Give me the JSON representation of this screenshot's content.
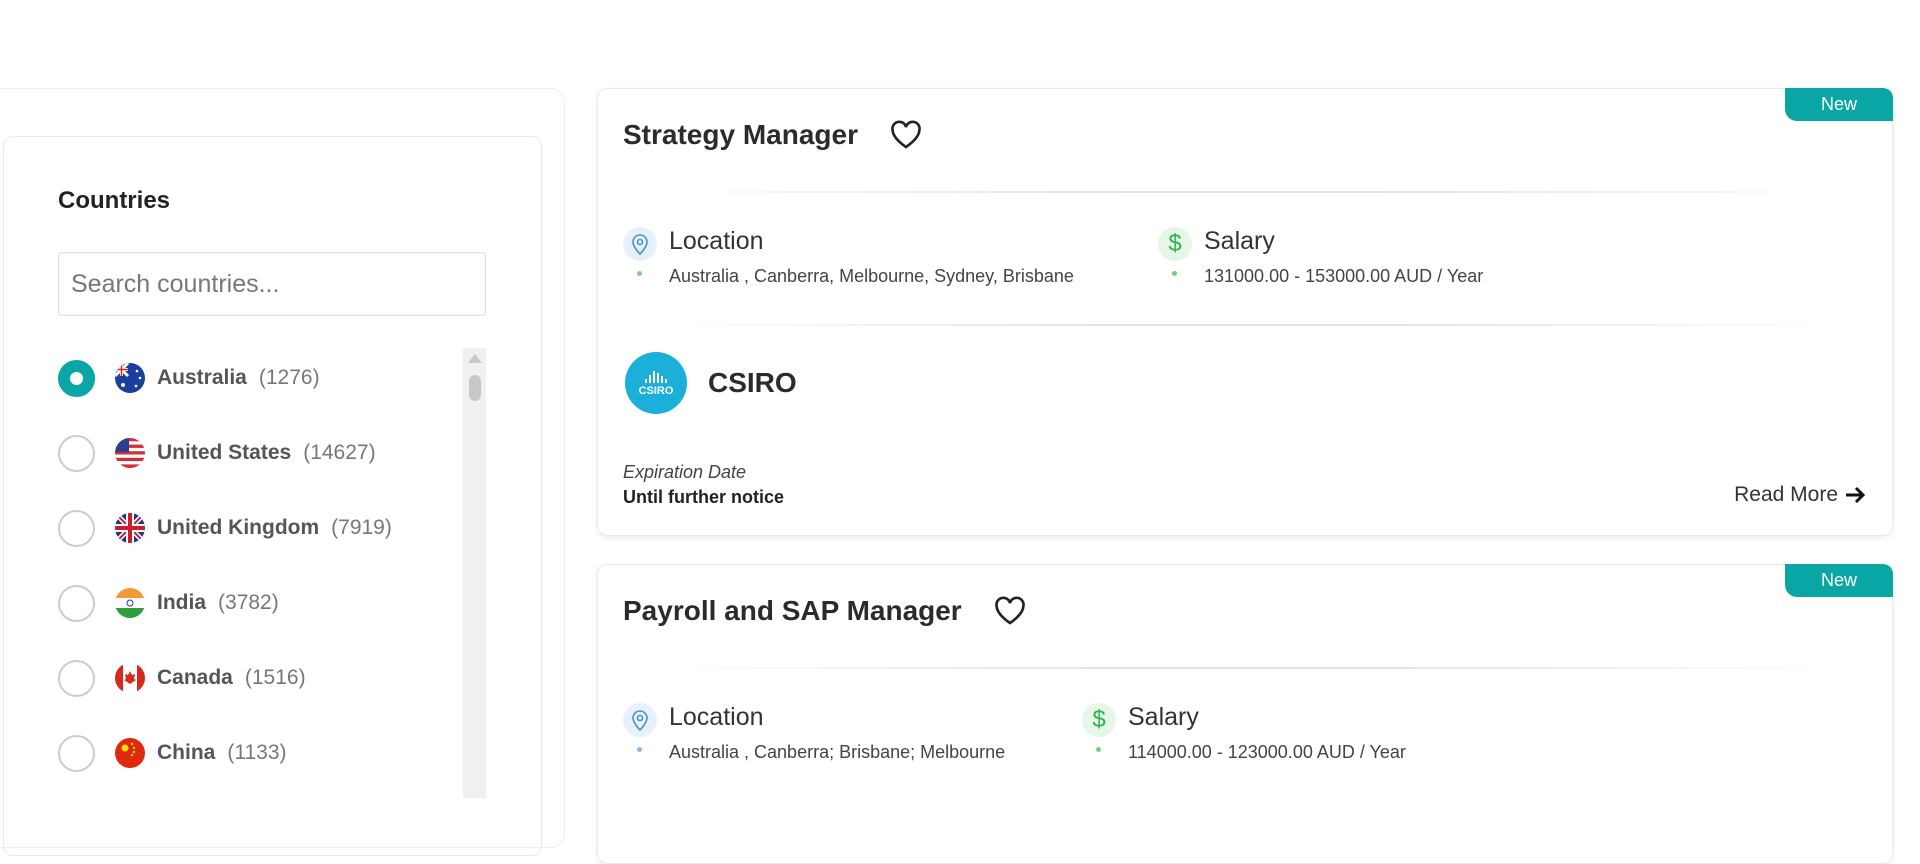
{
  "filters": {
    "title": "Countries",
    "search_placeholder": "Search countries...",
    "countries": [
      {
        "name": "Australia",
        "count": "(1276)",
        "selected": true
      },
      {
        "name": "United States",
        "count": "(14627)",
        "selected": false
      },
      {
        "name": "United Kingdom",
        "count": "(7919)",
        "selected": false
      },
      {
        "name": "India",
        "count": "(3782)",
        "selected": false
      },
      {
        "name": "Canada",
        "count": "(1516)",
        "selected": false
      },
      {
        "name": "China",
        "count": "(1133)",
        "selected": false
      }
    ]
  },
  "jobs": [
    {
      "badge": "New",
      "title": "Strategy Manager",
      "location_label": "Location",
      "location": "Australia , Canberra, Melbourne, Sydney, Brisbane",
      "salary_label": "Salary",
      "salary": "131000.00 - 153000.00 AUD / Year",
      "company": "CSIRO",
      "logo_text": "CSIRO",
      "expiration_label": "Expiration Date",
      "expiration": "Until further notice",
      "read_more": "Read More"
    },
    {
      "badge": "New",
      "title": "Payroll and SAP Manager",
      "location_label": "Location",
      "location": "Australia , Canberra; Brisbane; Melbourne",
      "salary_label": "Salary",
      "salary": "114000.00 - 123000.00 AUD / Year"
    }
  ],
  "colors": {
    "accent": "#0aa6a6"
  }
}
